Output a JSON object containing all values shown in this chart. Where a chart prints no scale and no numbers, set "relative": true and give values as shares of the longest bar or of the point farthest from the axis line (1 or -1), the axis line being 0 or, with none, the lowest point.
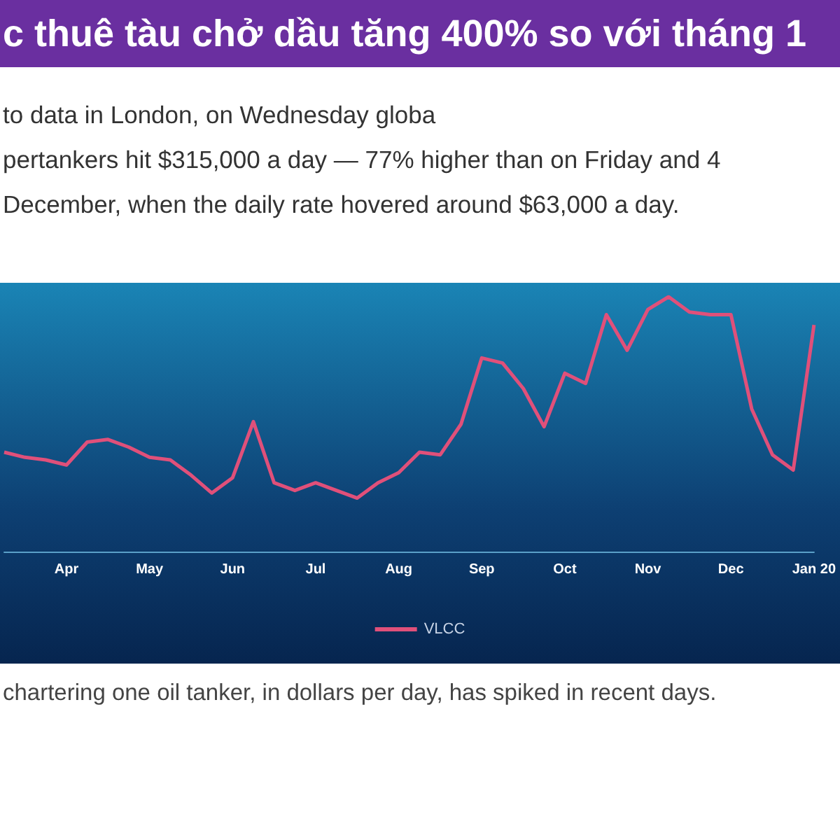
{
  "chart_data": {
    "type": "line",
    "title": "c thuê tàu chở dầu tăng 400% so với tháng 1",
    "annotations": [
      "to data in London, on Wednesday globa",
      "pertankers hit $315,000 a day — 77% higher than on Friday and 4",
      "December, when the daily rate hovered around $63,000 a day.",
      "chartering one oil tanker, in dollars per day, has spiked in recent days."
    ],
    "relative": true,
    "categories": [
      null,
      null,
      null,
      "Apr",
      null,
      null,
      null,
      "May",
      null,
      null,
      null,
      "Jun",
      null,
      null,
      null,
      "Jul",
      null,
      null,
      null,
      "Aug",
      null,
      null,
      null,
      "Sep",
      null,
      null,
      null,
      "Oct",
      null,
      null,
      null,
      "Nov",
      null,
      null,
      null,
      "Dec",
      null,
      null,
      null,
      "Jan 20"
    ],
    "series": [
      {
        "name": "VLCC",
        "color": "#e0507a",
        "values": [
          0.39,
          0.37,
          0.36,
          0.34,
          0.43,
          0.44,
          0.41,
          0.37,
          0.36,
          0.3,
          0.23,
          0.29,
          0.51,
          0.27,
          0.24,
          0.27,
          0.24,
          0.21,
          0.27,
          0.31,
          0.39,
          0.38,
          0.5,
          0.76,
          0.74,
          0.64,
          0.49,
          0.7,
          0.66,
          0.93,
          0.79,
          0.95,
          1,
          0.94,
          0.93,
          0.93,
          0.56,
          0.38,
          0.32,
          0.89
        ]
      }
    ],
    "legend": "bottom",
    "marker": "none",
    "line_style": "solid"
  }
}
